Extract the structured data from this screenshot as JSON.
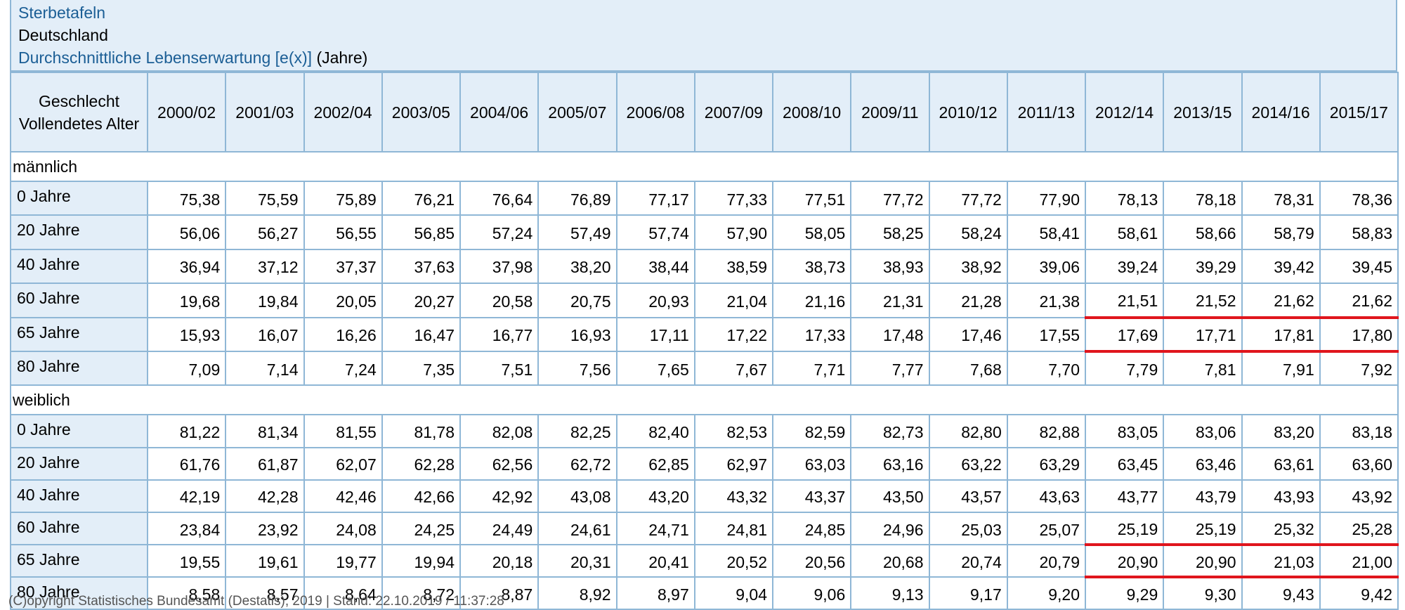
{
  "header": {
    "title": "Sterbetafeln",
    "region": "Deutschland",
    "measure_link": "Durchschnittliche Lebenserwartung [e(x)]",
    "unit": "(Jahre)"
  },
  "table": {
    "corner": [
      "Geschlecht",
      "Vollendetes Alter"
    ],
    "periods": [
      "2000/02",
      "2001/03",
      "2002/04",
      "2003/05",
      "2004/06",
      "2005/07",
      "2006/08",
      "2007/09",
      "2008/10",
      "2009/11",
      "2010/12",
      "2011/13",
      "2012/14",
      "2013/15",
      "2014/16",
      "2015/17"
    ],
    "groups": [
      {
        "label": "männlich",
        "rows": [
          {
            "age": "0 Jahre",
            "values": [
              "75,38",
              "75,59",
              "75,89",
              "76,21",
              "76,64",
              "76,89",
              "77,17",
              "77,33",
              "77,51",
              "77,72",
              "77,72",
              "77,90",
              "78,13",
              "78,18",
              "78,31",
              "78,36"
            ]
          },
          {
            "age": "20 Jahre",
            "values": [
              "56,06",
              "56,27",
              "56,55",
              "56,85",
              "57,24",
              "57,49",
              "57,74",
              "57,90",
              "58,05",
              "58,25",
              "58,24",
              "58,41",
              "58,61",
              "58,66",
              "58,79",
              "58,83"
            ]
          },
          {
            "age": "40 Jahre",
            "values": [
              "36,94",
              "37,12",
              "37,37",
              "37,63",
              "37,98",
              "38,20",
              "38,44",
              "38,59",
              "38,73",
              "38,93",
              "38,92",
              "39,06",
              "39,24",
              "39,29",
              "39,42",
              "39,45"
            ]
          },
          {
            "age": "60 Jahre",
            "values": [
              "19,68",
              "19,84",
              "20,05",
              "20,27",
              "20,58",
              "20,75",
              "20,93",
              "21,04",
              "21,16",
              "21,31",
              "21,28",
              "21,38",
              "21,51",
              "21,52",
              "21,62",
              "21,62"
            ]
          },
          {
            "age": "65 Jahre",
            "values": [
              "15,93",
              "16,07",
              "16,26",
              "16,47",
              "16,77",
              "16,93",
              "17,11",
              "17,22",
              "17,33",
              "17,48",
              "17,46",
              "17,55",
              "17,69",
              "17,71",
              "17,81",
              "17,80"
            ],
            "highlight_from": 12
          },
          {
            "age": "80 Jahre",
            "values": [
              "7,09",
              "7,14",
              "7,24",
              "7,35",
              "7,51",
              "7,56",
              "7,65",
              "7,67",
              "7,71",
              "7,77",
              "7,68",
              "7,70",
              "7,79",
              "7,81",
              "7,91",
              "7,92"
            ]
          }
        ]
      },
      {
        "label": "weiblich",
        "rows": [
          {
            "age": "0 Jahre",
            "values": [
              "81,22",
              "81,34",
              "81,55",
              "81,78",
              "82,08",
              "82,25",
              "82,40",
              "82,53",
              "82,59",
              "82,73",
              "82,80",
              "82,88",
              "83,05",
              "83,06",
              "83,20",
              "83,18"
            ]
          },
          {
            "age": "20 Jahre",
            "values": [
              "61,76",
              "61,87",
              "62,07",
              "62,28",
              "62,56",
              "62,72",
              "62,85",
              "62,97",
              "63,03",
              "63,16",
              "63,22",
              "63,29",
              "63,45",
              "63,46",
              "63,61",
              "63,60"
            ]
          },
          {
            "age": "40 Jahre",
            "values": [
              "42,19",
              "42,28",
              "42,46",
              "42,66",
              "42,92",
              "43,08",
              "43,20",
              "43,32",
              "43,37",
              "43,50",
              "43,57",
              "43,63",
              "43,77",
              "43,79",
              "43,93",
              "43,92"
            ]
          },
          {
            "age": "60 Jahre",
            "values": [
              "23,84",
              "23,92",
              "24,08",
              "24,25",
              "24,49",
              "24,61",
              "24,71",
              "24,81",
              "24,85",
              "24,96",
              "25,03",
              "25,07",
              "25,19",
              "25,19",
              "25,32",
              "25,28"
            ]
          },
          {
            "age": "65 Jahre",
            "values": [
              "19,55",
              "19,61",
              "19,77",
              "19,94",
              "20,18",
              "20,31",
              "20,41",
              "20,52",
              "20,56",
              "20,68",
              "20,74",
              "20,79",
              "20,90",
              "20,90",
              "21,03",
              "21,00"
            ],
            "highlight_from": 12
          },
          {
            "age": "80 Jahre",
            "values": [
              "8,58",
              "8,57",
              "8,64",
              "8,72",
              "8,87",
              "8,92",
              "8,97",
              "9,04",
              "9,06",
              "9,13",
              "9,17",
              "9,20",
              "9,29",
              "9,30",
              "9,43",
              "9,42"
            ]
          }
        ]
      }
    ]
  },
  "footer": "(C)opyright Statistisches Bundesamt (Destatis), 2019 | Stand: 22.10.2019 / 11:37:28",
  "colors": {
    "header_bg": "#e3eef8",
    "border": "#8fb7d6",
    "link": "#1b5e95",
    "highlight": "#e0151d"
  }
}
